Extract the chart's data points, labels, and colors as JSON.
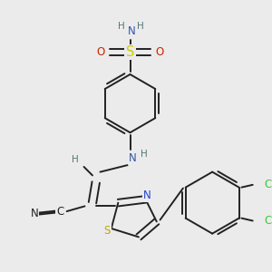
{
  "bg_color": "#ebebeb",
  "bond_color": "#222222",
  "bond_width": 1.4,
  "atom_colors": {
    "N": "#3355aa",
    "S_sulfonamide": "#cccc00",
    "O": "#cc2200",
    "H": "#557777",
    "C": "#222222",
    "N_triple": "#222222",
    "S_thiazole": "#bbaa00",
    "N_thiazole": "#2244cc",
    "Cl": "#33cc33"
  },
  "font_size": 8.5,
  "fig_size": [
    3.0,
    3.0
  ],
  "dpi": 100
}
